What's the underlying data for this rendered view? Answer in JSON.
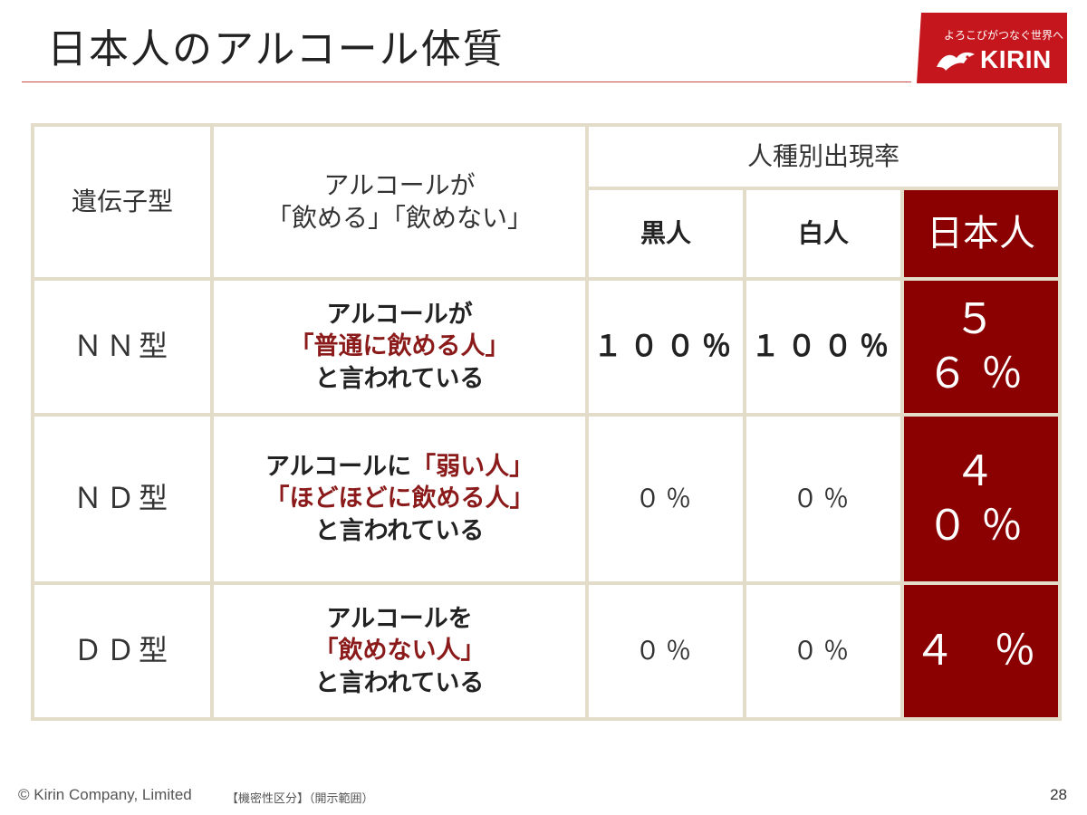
{
  "title": "日本人のアルコール体質",
  "logo": {
    "slogan": "よろこびがつなぐ世界へ",
    "name": "KIRIN",
    "mark_icon": "kirin-emblem-icon",
    "color": "#c4161c"
  },
  "table": {
    "header": {
      "genotype": "遺伝子型",
      "ability_line1": "アルコールが",
      "ability_line2": "「飲める」「飲めない」",
      "group": "人種別出現率",
      "col_black": "黒人",
      "col_white": "白人",
      "col_japanese": "日本人"
    },
    "rows": [
      {
        "type": "ＮＮ型",
        "desc_line1": "アルコールが",
        "desc_line2_red": "「普通に飲める人」",
        "desc_line3": "と言われている",
        "black": "１００％",
        "white": "１００％",
        "japanese": "５６％"
      },
      {
        "type": "ＮＤ型",
        "desc_line1": "アルコールに",
        "desc_line1_red": "「弱い人」",
        "desc_line2_red": "「ほどほどに飲める人」",
        "desc_line3": "と言われている",
        "black": "０％",
        "white": "０％",
        "japanese": "４０％"
      },
      {
        "type": "ＤＤ型",
        "desc_line1": "アルコールを",
        "desc_line2_red": "「飲めない人」",
        "desc_line3": "と言われている",
        "black": "０％",
        "white": "０％",
        "japanese": "４ ％"
      }
    ],
    "accent_color": "#8b0000",
    "border_color": "#e3dcc9"
  },
  "footer": {
    "copyright": "© Kirin Company, Limited",
    "classification": "【機密性区分】（開示範囲）",
    "page_number": "28"
  }
}
